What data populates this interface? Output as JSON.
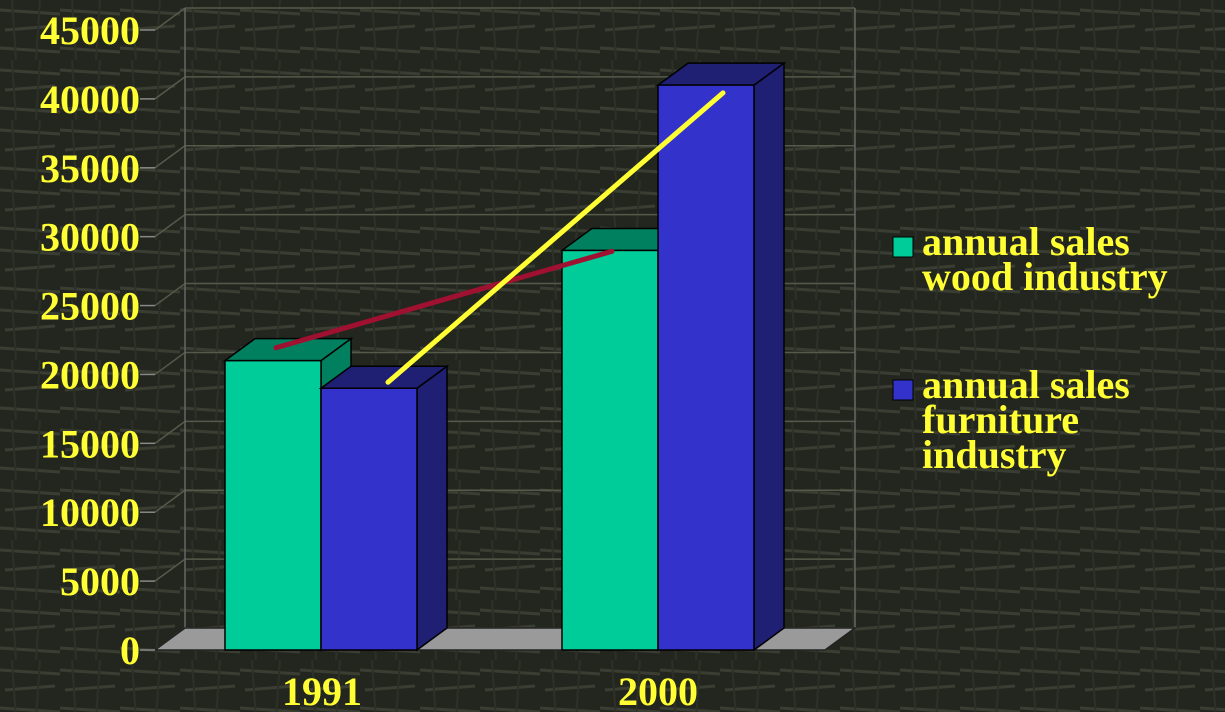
{
  "chart_data": {
    "type": "bar",
    "categories": [
      "1991",
      "2000"
    ],
    "series": [
      {
        "name": "annual sales wood industry",
        "values": [
          21000,
          29000
        ]
      },
      {
        "name": "annual sales furniture industry",
        "values": [
          19000,
          41000
        ]
      }
    ],
    "trend_lines": [
      {
        "series": "annual sales wood industry",
        "values": [
          21500,
          28500
        ]
      },
      {
        "series": "annual sales furniture industry",
        "values": [
          19000,
          40000
        ]
      }
    ],
    "y_ticks": [
      "0",
      "5000",
      "10000",
      "15000",
      "20000",
      "25000",
      "30000",
      "35000",
      "40000",
      "45000"
    ],
    "ylim": [
      0,
      45000
    ],
    "grid": true,
    "legend_position": "right",
    "legend_lines": [
      [
        "annual sales",
        "wood industry"
      ],
      [
        "annual sales",
        "furniture",
        "industry"
      ]
    ],
    "colors": {
      "wood": "#00cc99",
      "wood_side": "#00805f",
      "furniture": "#3333cc",
      "furniture_side": "#1f1f73",
      "wood_trend": "#a01030",
      "furniture_trend": "#ffff33",
      "text": "#ffff33",
      "floor": "#9a9a9a"
    }
  }
}
